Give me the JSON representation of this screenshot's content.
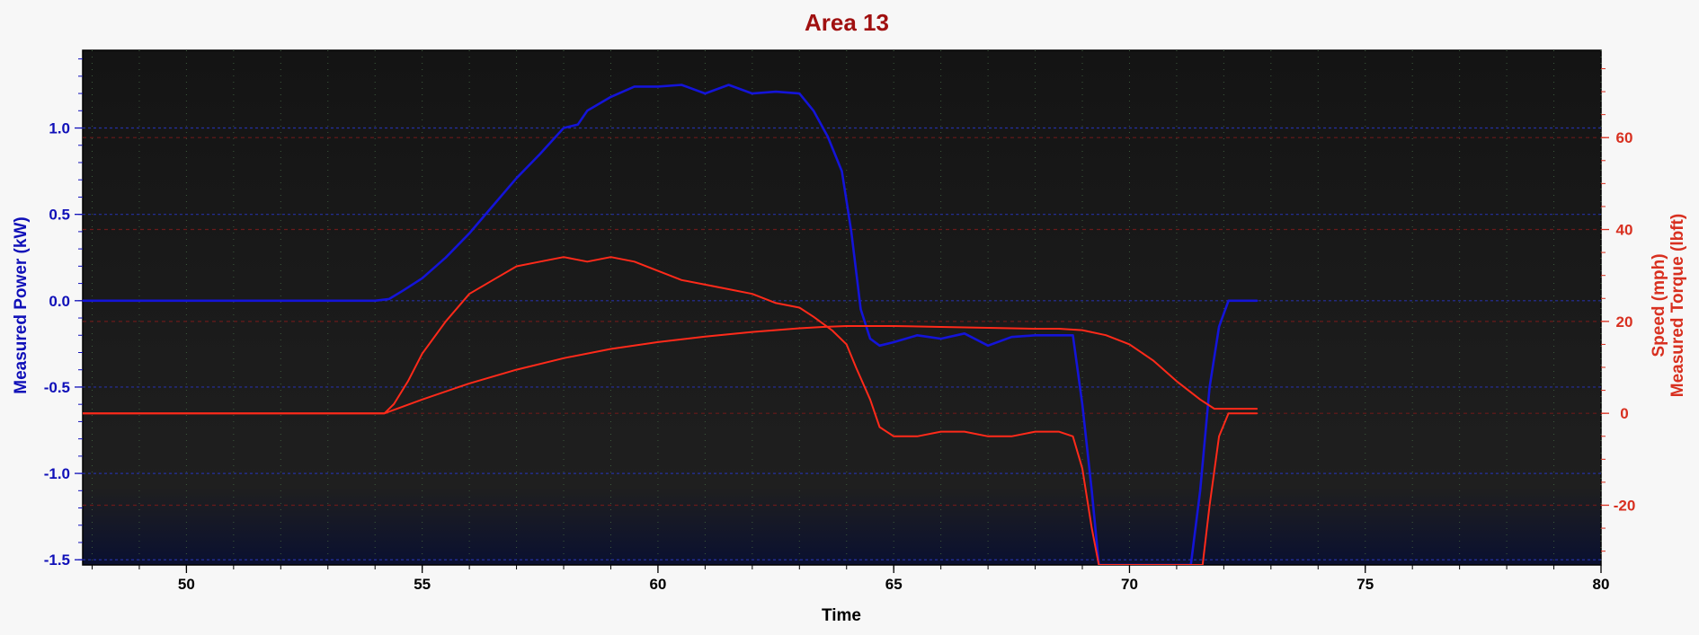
{
  "chart_data": {
    "type": "line",
    "title": "Area 13",
    "xlabel": "Time",
    "ylabel_left": "Measured Power (kW)",
    "ylabel_right_1": "Speed (mph)",
    "ylabel_right_2": "Measured Torque (lbft)",
    "xlim": [
      47.8,
      80
    ],
    "ylim_left": [
      -1.53,
      1.45
    ],
    "ylim_right": [
      -33,
      79
    ],
    "x_ticks": [
      50,
      55,
      60,
      65,
      70,
      75,
      80
    ],
    "y_ticks_left": [
      1.0,
      0.5,
      0.0,
      -0.5,
      -1.0,
      -1.5
    ],
    "y_ticks_left_labels": [
      "1.0",
      "0.5",
      "0.0",
      "-0.5",
      "-1.0",
      "-1.5"
    ],
    "y_ticks_right": [
      60,
      40,
      20,
      0,
      -20
    ],
    "grid": true,
    "colors": {
      "title": "#a01010",
      "left_axis": "#1010b8",
      "right_axis": "#d83020",
      "plot_background": "#1a1a1a",
      "power": "#1414d8",
      "torque": "#ff2a1a",
      "speed": "#ff2a1a"
    },
    "series": [
      {
        "name": "Measured Power (kW)",
        "axis": "left",
        "x": [
          47.8,
          54.0,
          54.3,
          54.6,
          55.0,
          55.5,
          56.0,
          56.5,
          57.0,
          57.5,
          58.0,
          58.3,
          58.5,
          59.0,
          59.5,
          60.0,
          60.5,
          61.0,
          61.5,
          62.0,
          62.5,
          63.0,
          63.3,
          63.6,
          63.9,
          64.1,
          64.3,
          64.5,
          64.7,
          65.0,
          65.5,
          66.0,
          66.5,
          67.0,
          67.5,
          68.0,
          68.5,
          68.8,
          69.0,
          69.2,
          69.35,
          71.3,
          71.5,
          71.7,
          71.9,
          72.1,
          72.7
        ],
        "y": [
          0.0,
          0.0,
          0.01,
          0.06,
          0.13,
          0.25,
          0.39,
          0.55,
          0.71,
          0.85,
          1.0,
          1.02,
          1.1,
          1.18,
          1.24,
          1.24,
          1.25,
          1.2,
          1.25,
          1.2,
          1.21,
          1.2,
          1.1,
          0.95,
          0.75,
          0.4,
          -0.05,
          -0.22,
          -0.26,
          -0.24,
          -0.2,
          -0.22,
          -0.19,
          -0.26,
          -0.21,
          -0.2,
          -0.2,
          -0.2,
          -0.6,
          -1.1,
          -1.53,
          -1.53,
          -1.1,
          -0.5,
          -0.15,
          0.0,
          0.0
        ]
      },
      {
        "name": "Measured Torque (lbft)",
        "axis": "right",
        "x": [
          47.8,
          54.2,
          54.4,
          54.7,
          55.0,
          55.5,
          56.0,
          56.5,
          57.0,
          57.5,
          58.0,
          58.5,
          59.0,
          59.5,
          60.0,
          60.5,
          61.0,
          61.5,
          62.0,
          62.5,
          63.0,
          63.3,
          63.7,
          64.0,
          64.2,
          64.5,
          64.7,
          65.0,
          65.5,
          66.0,
          66.5,
          67.0,
          67.5,
          68.0,
          68.5,
          68.8,
          69.0,
          69.2,
          69.35,
          71.55,
          71.7,
          71.9,
          72.1,
          72.7
        ],
        "y": [
          0,
          0,
          2,
          7,
          13,
          20,
          26,
          29,
          32,
          33,
          34,
          33,
          34,
          33,
          31,
          29,
          28,
          27,
          26,
          24,
          23,
          21,
          18,
          15,
          10,
          3,
          -3,
          -5,
          -5,
          -4,
          -4,
          -5,
          -5,
          -4,
          -4,
          -5,
          -12,
          -25,
          -33,
          -33,
          -20,
          -5,
          0,
          0
        ]
      },
      {
        "name": "Speed (mph)",
        "axis": "right",
        "x": [
          47.8,
          54.2,
          55.0,
          56.0,
          57.0,
          58.0,
          59.0,
          60.0,
          61.0,
          62.0,
          63.0,
          63.5,
          64.0,
          65.0,
          66.0,
          67.0,
          68.0,
          68.5,
          69.0,
          69.5,
          70.0,
          70.5,
          71.0,
          71.5,
          71.8,
          72.1,
          72.7
        ],
        "y": [
          0,
          0,
          3,
          6.5,
          9.5,
          12,
          14,
          15.5,
          16.7,
          17.7,
          18.5,
          18.8,
          19,
          19,
          18.8,
          18.6,
          18.4,
          18.4,
          18.1,
          17,
          15,
          11.5,
          7,
          3,
          1,
          1,
          1
        ]
      }
    ]
  }
}
